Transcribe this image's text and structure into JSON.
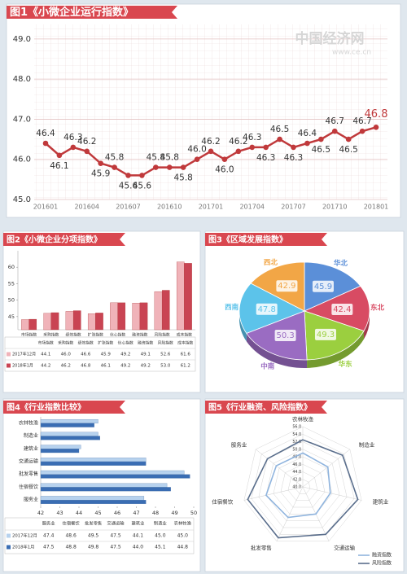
{
  "watermark": {
    "name": "中国经济网",
    "url": "www.ce.cn"
  },
  "chart_data": [
    {
      "type": "line",
      "title": "图1《小微企业运行指数》",
      "categories": [
        "201601",
        null,
        null,
        "201604",
        null,
        null,
        "201607",
        null,
        null,
        "201610",
        null,
        null,
        "201701",
        null,
        null,
        "201704",
        null,
        null,
        "201707",
        null,
        null,
        "201710",
        null,
        null,
        "201801"
      ],
      "series": [
        {
          "name": "小微企业运行指数",
          "color": "#c0393b",
          "values": [
            46.4,
            46.1,
            46.3,
            46.2,
            45.9,
            45.8,
            45.6,
            45.6,
            45.8,
            45.8,
            45.8,
            46.0,
            46.2,
            46.0,
            46.2,
            46.3,
            46.3,
            46.5,
            46.3,
            46.4,
            46.5,
            46.7,
            46.5,
            46.7,
            46.8
          ],
          "value_labels": [
            "46.4",
            "46.1",
            "46.3",
            "46.2",
            "45.9",
            "45.8",
            "45.6",
            "45.6",
            "45.8",
            "45.8",
            "45.8",
            "46.0",
            "46.2",
            "46.0",
            "46.2",
            "46.3",
            "46.3",
            "46.5",
            "46.3",
            "46.4",
            "46.5",
            "46.7",
            "46.5",
            "46.7",
            "46.8"
          ]
        }
      ],
      "ylim": [
        45,
        49.2
      ],
      "yticks": [
        {
          "value": 45,
          "label": "45.0"
        },
        {
          "value": 46,
          "label": "46.0"
        },
        {
          "value": 47,
          "label": "47.0"
        },
        {
          "value": 48,
          "label": "48.0"
        },
        {
          "value": 49,
          "label": "49.0"
        }
      ],
      "grid": true
    },
    {
      "type": "bar",
      "title": "图2《小微企业分项指数》",
      "categories": [
        "市场指数",
        "采购指数",
        "绩效指数",
        "扩张指数",
        "信心指数",
        "融资指数",
        "风险指数",
        "成本指数"
      ],
      "series": [
        {
          "name": "2017年12月",
          "color": "#f0b3b9",
          "values": [
            44.1,
            46.0,
            46.6,
            45.9,
            49.2,
            49.1,
            52.6,
            61.6
          ],
          "value_labels": [
            "44.1",
            "46.0",
            "46.6",
            "45.9",
            "49.2",
            "49.1",
            "52.6",
            "61.6"
          ]
        },
        {
          "name": "2018年1月",
          "color": "#c94453",
          "values": [
            44.2,
            46.2,
            46.8,
            46.1,
            49.2,
            49.2,
            53.0,
            61.2
          ],
          "value_labels": [
            "44.2",
            "46.2",
            "46.8",
            "46.1",
            "49.2",
            "49.2",
            "53.0",
            "61.2"
          ]
        }
      ],
      "ylim": [
        41,
        65
      ],
      "yticks": [
        45,
        50,
        55,
        60
      ]
    },
    {
      "type": "pie",
      "title": "图3《区域发展指数》",
      "categories": [
        "华北",
        "东北",
        "华东",
        "中南",
        "西南",
        "西北"
      ],
      "values": [
        45.9,
        42.4,
        49.3,
        50.3,
        47.8,
        42.9
      ],
      "colors": [
        "#5b8fd8",
        "#d84b63",
        "#9bcf3f",
        "#9a6cc2",
        "#5cc3ea",
        "#f2a646"
      ]
    },
    {
      "type": "hbar",
      "title": "图4《行业指数比较》",
      "categories": [
        "服务业",
        "住宿餐饮",
        "批发零售",
        "交通运输",
        "建筑业",
        "制造业",
        "农林牧渔"
      ],
      "series": [
        {
          "name": "2017年12月",
          "color": "#b7d2ee",
          "values": [
            47.4,
            48.6,
            49.5,
            47.5,
            44.1,
            45.0,
            45.0
          ],
          "value_labels": [
            "47.4",
            "48.6",
            "49.5",
            "47.5",
            "44.1",
            "45.0",
            "45.0"
          ]
        },
        {
          "name": "2018年1月",
          "color": "#3a6db3",
          "values": [
            47.5,
            48.8,
            49.8,
            47.5,
            44.0,
            45.1,
            44.8
          ],
          "value_labels": [
            "47.5",
            "48.8",
            "49.8",
            "47.5",
            "44.0",
            "45.1",
            "44.8"
          ]
        }
      ],
      "xlim": [
        42,
        50
      ],
      "xticks": [
        42,
        43,
        44,
        45,
        46,
        47,
        48,
        49,
        50
      ]
    },
    {
      "type": "radar",
      "title": "图5《行业融资、风险指数》",
      "categories": [
        "农林牧渔",
        "制造业",
        "建筑业",
        "交通运输",
        "批发零售",
        "住宿餐饮",
        "服务业"
      ],
      "series": [
        {
          "name": "融资指数",
          "color": "#8fb4de",
          "values": [
            49,
            48.5,
            47.5,
            48,
            49,
            50,
            49
          ]
        },
        {
          "name": "风险指数",
          "color": "#5a6e8c",
          "values": [
            52.5,
            53.5,
            55,
            54,
            55,
            55,
            52
          ]
        }
      ],
      "rlim": [
        40,
        56
      ],
      "rticks": [
        {
          "value": 40,
          "label": "40.0"
        },
        {
          "value": 42,
          "label": "42.0"
        },
        {
          "value": 44,
          "label": "44.0"
        },
        {
          "value": 46,
          "label": "46.0"
        },
        {
          "value": 48,
          "label": "48.0"
        },
        {
          "value": 50,
          "label": "50.0"
        },
        {
          "value": 52,
          "label": "52.0"
        },
        {
          "value": 54,
          "label": "54.0"
        },
        {
          "value": 56,
          "label": "56.0"
        }
      ]
    }
  ]
}
